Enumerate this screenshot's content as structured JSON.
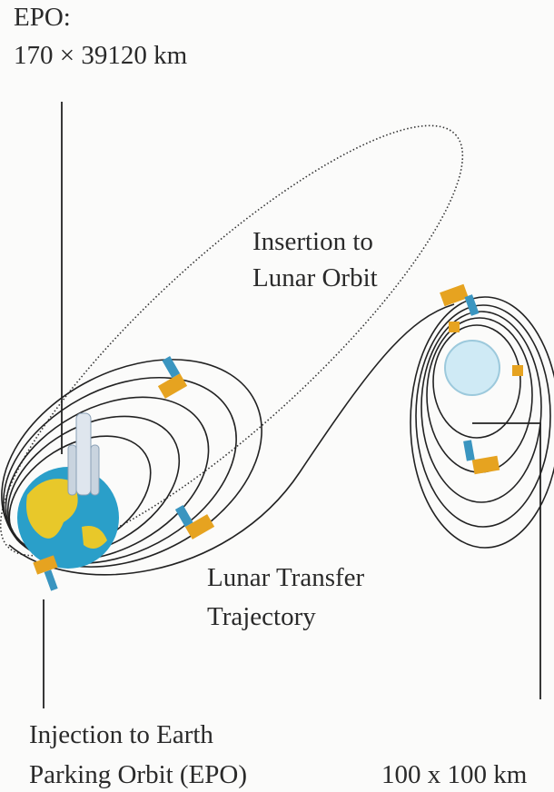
{
  "labels": {
    "epo": [
      "EPO:",
      "170 × 39120 km"
    ],
    "insertion": [
      "Insertion to",
      "Lunar Orbit"
    ],
    "transfer": [
      "Lunar Transfer",
      "Trajectory"
    ],
    "injection": [
      "Injection to Earth",
      "Parking Orbit (EPO)"
    ],
    "lunar_orbit": [
      "100 x 100 km"
    ]
  }
}
